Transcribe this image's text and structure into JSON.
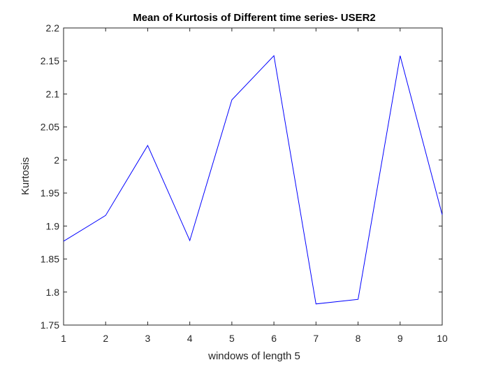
{
  "chart_data": {
    "type": "line",
    "title": "Mean of Kurtosis of Different time series- USER2",
    "xlabel": "windows of length 5",
    "ylabel": "Kurtosis",
    "xlim": [
      1,
      10
    ],
    "ylim": [
      1.75,
      2.2
    ],
    "x_ticks": [
      "1",
      "2",
      "3",
      "4",
      "5",
      "6",
      "7",
      "8",
      "9",
      "10"
    ],
    "y_ticks": [
      "1.75",
      "1.8",
      "1.85",
      "1.9",
      "1.95",
      "2",
      "2.05",
      "2.1",
      "2.15",
      "2.2"
    ],
    "grid": false,
    "series": [
      {
        "color": "#0000ff",
        "x": [
          1,
          2,
          3,
          4,
          5,
          6,
          7,
          8,
          9,
          10
        ],
        "y": [
          1.877,
          1.916,
          2.022,
          1.878,
          2.091,
          2.158,
          1.782,
          1.789,
          2.158,
          1.917
        ]
      }
    ]
  }
}
